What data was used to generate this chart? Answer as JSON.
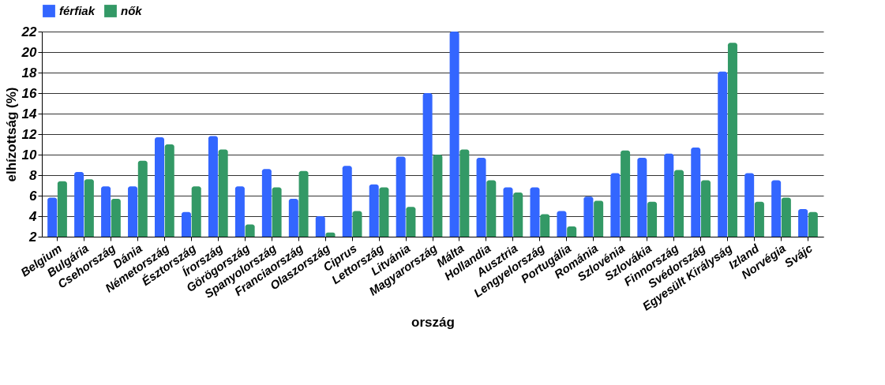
{
  "chart_data": {
    "type": "bar",
    "xlabel": "ország",
    "ylabel": "elhízottság (%)",
    "categories": [
      "Belgium",
      "Bulgária",
      "Csehország",
      "Dánia",
      "Németország",
      "Észtország",
      "Írország",
      "Görögország",
      "Spanyolország",
      "Franciaország",
      "Olaszország",
      "Ciprus",
      "Lettország",
      "Litvánia",
      "Magyarország",
      "Málta",
      "Hollandia",
      "Ausztria",
      "Lengyelország",
      "Portugália",
      "Románia",
      "Szlovénia",
      "Szlovákia",
      "Finnország",
      "Svédország",
      "Egyesült Királyság",
      "Izland",
      "Norvégia",
      "Svájc"
    ],
    "series": [
      {
        "name": "férfiak",
        "color": "#3366ff",
        "values": [
          5.8,
          8.3,
          6.9,
          6.9,
          11.7,
          4.4,
          11.8,
          6.9,
          8.6,
          5.7,
          4.0,
          8.9,
          7.1,
          9.8,
          16.0,
          22.0,
          9.7,
          6.8,
          6.8,
          4.5,
          5.9,
          8.2,
          9.7,
          10.1,
          10.7,
          18.1,
          8.2,
          7.5,
          4.7
        ]
      },
      {
        "name": "nők",
        "color": "#339966",
        "values": [
          7.4,
          7.6,
          5.7,
          9.4,
          11.0,
          6.9,
          10.5,
          3.2,
          6.8,
          8.4,
          2.4,
          4.5,
          6.8,
          4.9,
          10.0,
          10.5,
          7.5,
          6.3,
          4.2,
          3.0,
          5.5,
          10.4,
          5.4,
          8.5,
          7.5,
          20.9,
          5.4,
          5.8,
          4.4
        ]
      }
    ],
    "ylim": [
      2,
      22
    ],
    "yticks": [
      2,
      4,
      6,
      8,
      10,
      12,
      14,
      16,
      18,
      20,
      22
    ],
    "grid": "y",
    "legend": "top"
  }
}
